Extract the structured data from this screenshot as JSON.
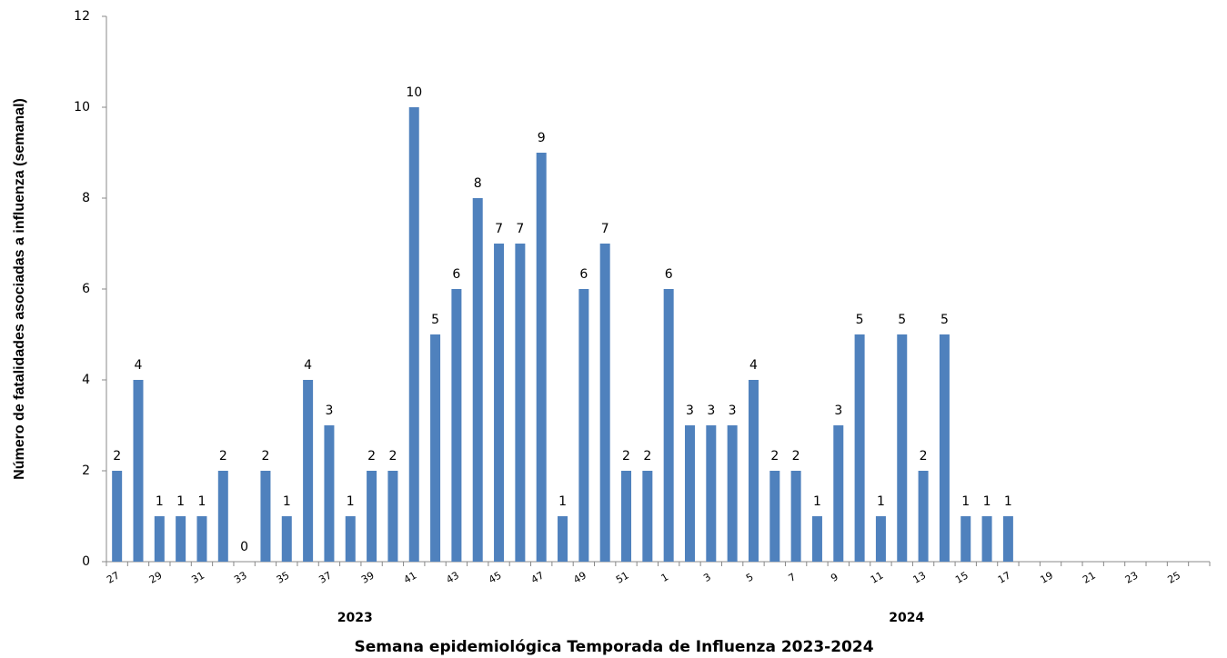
{
  "chart_data": {
    "type": "bar",
    "title": "Semana epidemiológica Temporada de Influenza 2023-2024",
    "y_label": "Número de fatalidades asociadas a influenza (semanal)",
    "x_groups": [
      "2023",
      "2024"
    ],
    "categories": [
      "27",
      null,
      "29",
      null,
      "31",
      null,
      "33",
      null,
      "35",
      null,
      "37",
      null,
      "39",
      null,
      "41",
      null,
      "43",
      null,
      "45",
      null,
      "47",
      null,
      "49",
      null,
      "51",
      null,
      "1",
      null,
      "3",
      null,
      "5",
      null,
      "7",
      null,
      "9",
      null,
      "11",
      null,
      "13",
      null,
      "15",
      null,
      "17",
      null,
      "19",
      null,
      "21",
      null,
      "23",
      null,
      "25",
      null
    ],
    "values": [
      2,
      4,
      1,
      1,
      1,
      2,
      0,
      2,
      1,
      4,
      3,
      1,
      2,
      2,
      10,
      5,
      6,
      8,
      7,
      7,
      9,
      1,
      6,
      7,
      2,
      2,
      6,
      3,
      3,
      3,
      4,
      2,
      2,
      1,
      3,
      5,
      1,
      5,
      2,
      5,
      1,
      1,
      1,
      null,
      null,
      null,
      null,
      null,
      null,
      null,
      null,
      null
    ],
    "color": "#4f81bd",
    "ylim": [
      0,
      12
    ],
    "yticks": [
      0,
      2,
      4,
      6,
      8,
      10,
      12
    ],
    "grid": false
  }
}
